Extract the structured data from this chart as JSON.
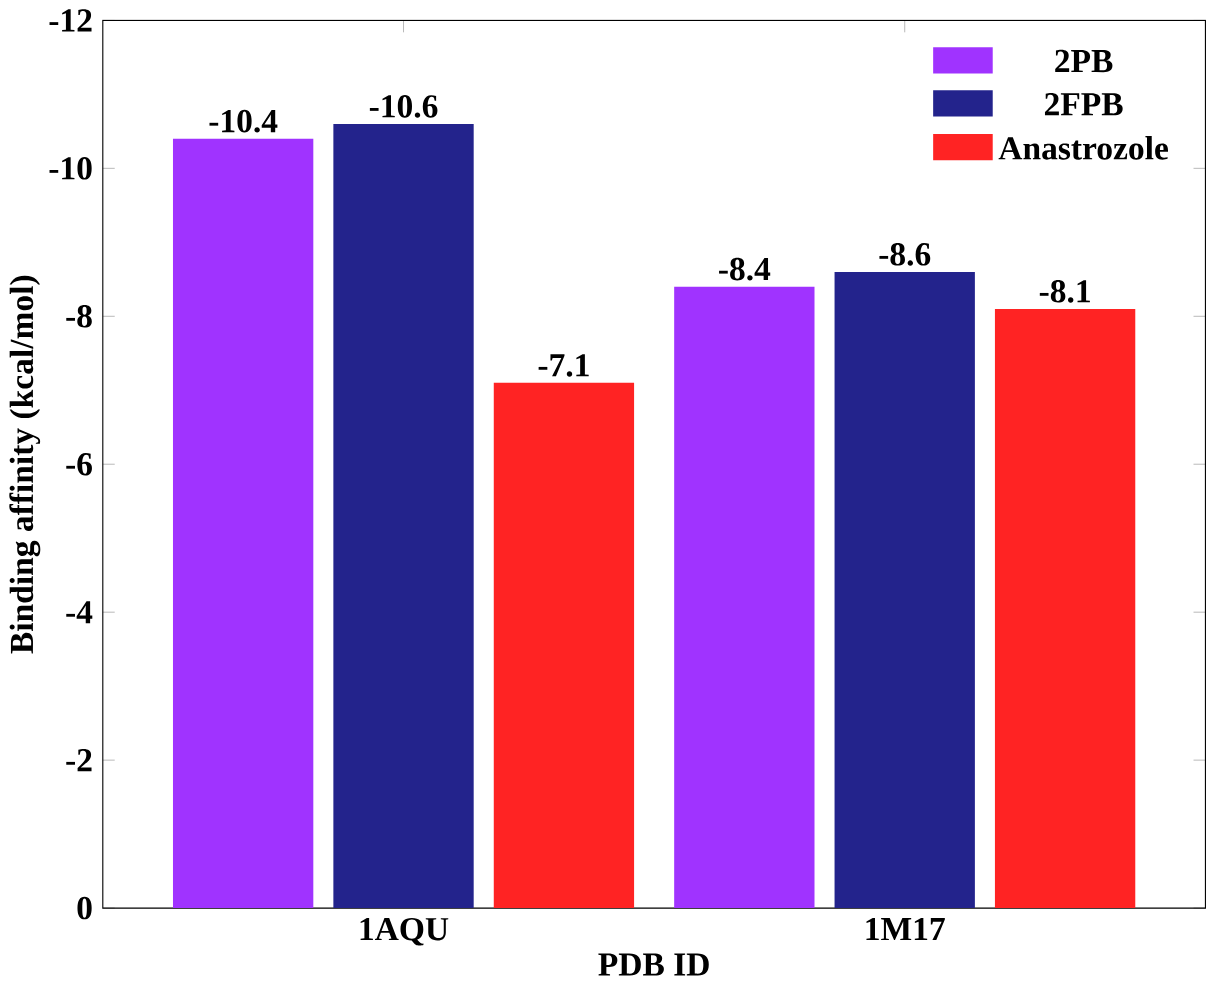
{
  "chart_data": {
    "type": "bar",
    "xlabel": "PDB ID",
    "ylabel": "Binding affinity (kcal/mol)",
    "categories": [
      "1AQU",
      "1M17"
    ],
    "series": [
      {
        "name": "2PB",
        "color": "#a033ff",
        "values": [
          -10.4,
          -8.4
        ]
      },
      {
        "name": "2FPB",
        "color": "#23238c",
        "values": [
          -10.6,
          -8.6
        ]
      },
      {
        "name": "Anastrozole",
        "color": "#ff2323",
        "values": [
          -7.1,
          -8.1
        ]
      }
    ],
    "ylim": [
      0,
      -12
    ],
    "yticks": [
      0,
      -2,
      -4,
      -6,
      -8,
      -10,
      -12
    ],
    "data_labels": true,
    "legend": "top right"
  }
}
